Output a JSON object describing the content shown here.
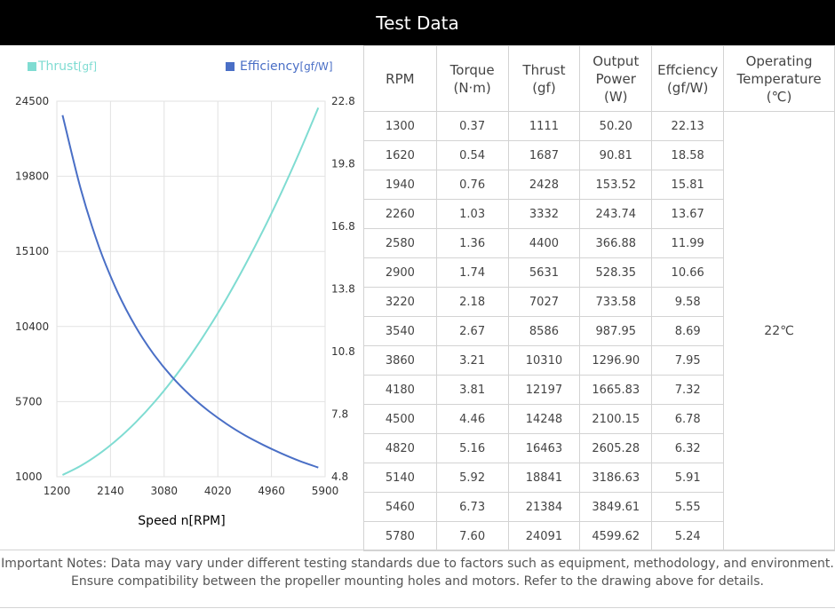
{
  "header": {
    "title": "Test Data"
  },
  "legend": {
    "thrust": {
      "label": "Thrust",
      "unit": "[gf]",
      "color": "#7fdcd2"
    },
    "efficiency": {
      "label": "Efficiency",
      "unit": "[gf/W]",
      "color": "#4a6fc6"
    }
  },
  "chart_data": {
    "type": "line",
    "xlabel": "Speed n[RPM]",
    "xlim": [
      1200,
      5900
    ],
    "x_ticks": [
      "1200",
      "2140",
      "3080",
      "4020",
      "4960",
      "5900"
    ],
    "y_left": {
      "label": "Thrust[gf]",
      "lim": [
        1000,
        24500
      ],
      "ticks": [
        "1000",
        "5700",
        "10400",
        "15100",
        "19800",
        "24500"
      ]
    },
    "y_right": {
      "label": "Efficiency[gf/W]",
      "lim": [
        4.8,
        22.8
      ],
      "ticks": [
        "4.8",
        "7.8",
        "10.8",
        "13.8",
        "16.8",
        "19.8",
        "22.8"
      ]
    },
    "grid": true,
    "legend_position": "top",
    "series": [
      {
        "name": "Thrust[gf]",
        "axis": "left",
        "color": "#7fdcd2",
        "x": [
          1300,
          1620,
          1940,
          2260,
          2580,
          2900,
          3220,
          3540,
          3860,
          4180,
          4500,
          4820,
          5140,
          5460,
          5780
        ],
        "y": [
          1111,
          1687,
          2428,
          3332,
          4400,
          5631,
          7027,
          8586,
          10310,
          12197,
          14248,
          16463,
          18841,
          21384,
          24091
        ]
      },
      {
        "name": "Efficiency[gf/W]",
        "axis": "right",
        "color": "#4a6fc6",
        "x": [
          1300,
          1620,
          1940,
          2260,
          2580,
          2900,
          3220,
          3540,
          3860,
          4180,
          4500,
          4820,
          5140,
          5460,
          5780
        ],
        "y": [
          22.13,
          18.58,
          15.81,
          13.67,
          11.99,
          10.66,
          9.58,
          8.69,
          7.95,
          7.32,
          6.78,
          6.32,
          5.91,
          5.55,
          5.24
        ]
      }
    ]
  },
  "table": {
    "headers": [
      [
        "RPM"
      ],
      [
        "Torque",
        "(N·m)"
      ],
      [
        "Thrust",
        "(gf)"
      ],
      [
        "Output",
        "Power",
        "(W)"
      ],
      [
        "Effciency",
        "(gf/W)"
      ],
      [
        "Operating",
        "Temperature",
        "(℃)"
      ]
    ],
    "rows": [
      [
        "1300",
        "0.37",
        "1111",
        "50.20",
        "22.13"
      ],
      [
        "1620",
        "0.54",
        "1687",
        "90.81",
        "18.58"
      ],
      [
        "1940",
        "0.76",
        "2428",
        "153.52",
        "15.81"
      ],
      [
        "2260",
        "1.03",
        "3332",
        "243.74",
        "13.67"
      ],
      [
        "2580",
        "1.36",
        "4400",
        "366.88",
        "11.99"
      ],
      [
        "2900",
        "1.74",
        "5631",
        "528.35",
        "10.66"
      ],
      [
        "3220",
        "2.18",
        "7027",
        "733.58",
        "9.58"
      ],
      [
        "3540",
        "2.67",
        "8586",
        "987.95",
        "8.69"
      ],
      [
        "3860",
        "3.21",
        "10310",
        "1296.90",
        "7.95"
      ],
      [
        "4180",
        "3.81",
        "12197",
        "1665.83",
        "7.32"
      ],
      [
        "4500",
        "4.46",
        "14248",
        "2100.15",
        "6.78"
      ],
      [
        "4820",
        "5.16",
        "16463",
        "2605.28",
        "6.32"
      ],
      [
        "5140",
        "5.92",
        "18841",
        "3186.63",
        "5.91"
      ],
      [
        "5460",
        "6.73",
        "21384",
        "3849.61",
        "5.55"
      ],
      [
        "5780",
        "7.60",
        "24091",
        "4599.62",
        "5.24"
      ]
    ],
    "operating_temperature": "22℃"
  },
  "notes": [
    "Important Notes: Data may vary under different testing standards due to factors such as equipment, methodology, and environment.",
    "Ensure compatibility between the propeller mounting holes and motors. Refer to the drawing above for details."
  ]
}
